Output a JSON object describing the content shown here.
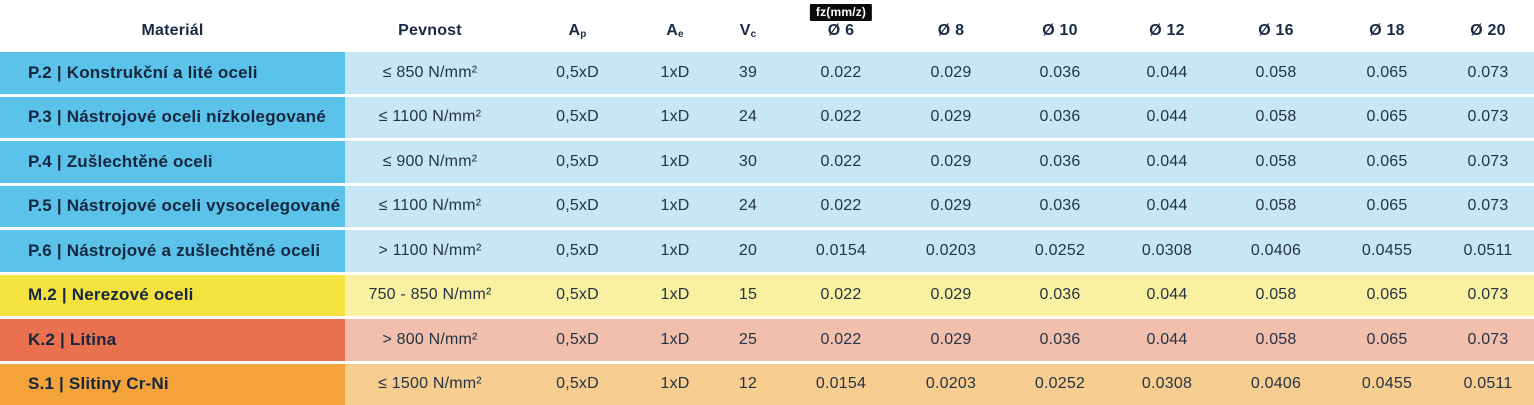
{
  "table": {
    "headers": {
      "material": "Materiál",
      "pevnost": "Pevnost",
      "ap_base": "A",
      "ap_sub": "p",
      "ae_base": "A",
      "ae_sub": "e",
      "vc_base": "V",
      "vc_sub": "c",
      "fz_badge": "fz(mm/z)",
      "diameters": [
        "Ø 6",
        "Ø 8",
        "Ø 10",
        "Ø 12",
        "Ø 16",
        "Ø 18",
        "Ø 20"
      ]
    },
    "themes": {
      "blue": {
        "label": "#5bc2e9",
        "cell": "#c7e7f6"
      },
      "yellow": {
        "label": "#f4e23e",
        "cell": "#f9f1a1"
      },
      "salmon": {
        "label": "#e97150",
        "cell": "#f3bfad"
      },
      "orange": {
        "label": "#f4a33b",
        "cell": "#f8cd90"
      }
    },
    "rows": [
      {
        "theme": "blue",
        "material": "P.2 | Konstrukční a lité oceli",
        "pevnost": "≤ 850 N/mm²",
        "ap": "0,5xD",
        "ae": "1xD",
        "vc": "39",
        "fz": [
          "0.022",
          "0.029",
          "0.036",
          "0.044",
          "0.058",
          "0.065",
          "0.073"
        ]
      },
      {
        "theme": "blue",
        "material": "P.3 | Nástrojové oceli nízkolegované",
        "pevnost": "≤ 1100 N/mm²",
        "ap": "0,5xD",
        "ae": "1xD",
        "vc": "24",
        "fz": [
          "0.022",
          "0.029",
          "0.036",
          "0.044",
          "0.058",
          "0.065",
          "0.073"
        ]
      },
      {
        "theme": "blue",
        "material": "P.4 | Zušlechtěné oceli",
        "pevnost": "≤ 900 N/mm²",
        "ap": "0,5xD",
        "ae": "1xD",
        "vc": "30",
        "fz": [
          "0.022",
          "0.029",
          "0.036",
          "0.044",
          "0.058",
          "0.065",
          "0.073"
        ]
      },
      {
        "theme": "blue",
        "material": "P.5 | Nástrojové oceli vysocelegované",
        "pevnost": "≤ 1100 N/mm²",
        "ap": "0,5xD",
        "ae": "1xD",
        "vc": "24",
        "fz": [
          "0.022",
          "0.029",
          "0.036",
          "0.044",
          "0.058",
          "0.065",
          "0.073"
        ]
      },
      {
        "theme": "blue",
        "material": "P.6 | Nástrojové a zušlechtěné oceli",
        "pevnost": "> 1100 N/mm²",
        "ap": "0,5xD",
        "ae": "1xD",
        "vc": "20",
        "fz": [
          "0.0154",
          "0.0203",
          "0.0252",
          "0.0308",
          "0.0406",
          "0.0455",
          "0.0511"
        ]
      },
      {
        "theme": "yellow",
        "material": "M.2 | Nerezové oceli",
        "pevnost": "750 - 850 N/mm²",
        "ap": "0,5xD",
        "ae": "1xD",
        "vc": "15",
        "fz": [
          "0.022",
          "0.029",
          "0.036",
          "0.044",
          "0.058",
          "0.065",
          "0.073"
        ]
      },
      {
        "theme": "salmon",
        "material": "K.2 | Litina",
        "pevnost": "> 800 N/mm²",
        "ap": "0,5xD",
        "ae": "1xD",
        "vc": "25",
        "fz": [
          "0.022",
          "0.029",
          "0.036",
          "0.044",
          "0.058",
          "0.065",
          "0.073"
        ]
      },
      {
        "theme": "orange",
        "material": "S.1 | Slitiny Cr-Ni",
        "pevnost": "≤ 1500 N/mm²",
        "ap": "0,5xD",
        "ae": "1xD",
        "vc": "12",
        "fz": [
          "0.0154",
          "0.0203",
          "0.0252",
          "0.0308",
          "0.0406",
          "0.0455",
          "0.0511"
        ]
      }
    ]
  },
  "chart_data": {
    "type": "table",
    "title": "",
    "columns": [
      "Materiál",
      "Pevnost",
      "Ap",
      "Ae",
      "Vc",
      "fz(mm/z) Ø 6",
      "Ø 8",
      "Ø 10",
      "Ø 12",
      "Ø 16",
      "Ø 18",
      "Ø 20"
    ],
    "rows": [
      [
        "P.2 | Konstrukční a lité oceli",
        "≤ 850 N/mm²",
        "0,5xD",
        "1xD",
        39,
        0.022,
        0.029,
        0.036,
        0.044,
        0.058,
        0.065,
        0.073
      ],
      [
        "P.3 | Nástrojové oceli nízkolegované",
        "≤ 1100 N/mm²",
        "0,5xD",
        "1xD",
        24,
        0.022,
        0.029,
        0.036,
        0.044,
        0.058,
        0.065,
        0.073
      ],
      [
        "P.4 | Zušlechtěné oceli",
        "≤ 900 N/mm²",
        "0,5xD",
        "1xD",
        30,
        0.022,
        0.029,
        0.036,
        0.044,
        0.058,
        0.065,
        0.073
      ],
      [
        "P.5 | Nástrojové oceli vysocelegované",
        "≤ 1100 N/mm²",
        "0,5xD",
        "1xD",
        24,
        0.022,
        0.029,
        0.036,
        0.044,
        0.058,
        0.065,
        0.073
      ],
      [
        "P.6 | Nástrojové a zušlechtěné oceli",
        "> 1100 N/mm²",
        "0,5xD",
        "1xD",
        20,
        0.0154,
        0.0203,
        0.0252,
        0.0308,
        0.0406,
        0.0455,
        0.0511
      ],
      [
        "M.2 | Nerezové oceli",
        "750 - 850 N/mm²",
        "0,5xD",
        "1xD",
        15,
        0.022,
        0.029,
        0.036,
        0.044,
        0.058,
        0.065,
        0.073
      ],
      [
        "K.2 | Litina",
        "> 800 N/mm²",
        "0,5xD",
        "1xD",
        25,
        0.022,
        0.029,
        0.036,
        0.044,
        0.058,
        0.065,
        0.073
      ],
      [
        "S.1 | Slitiny Cr-Ni",
        "≤ 1500 N/mm²",
        "0,5xD",
        "1xD",
        12,
        0.0154,
        0.0203,
        0.0252,
        0.0308,
        0.0406,
        0.0455,
        0.0511
      ]
    ]
  }
}
